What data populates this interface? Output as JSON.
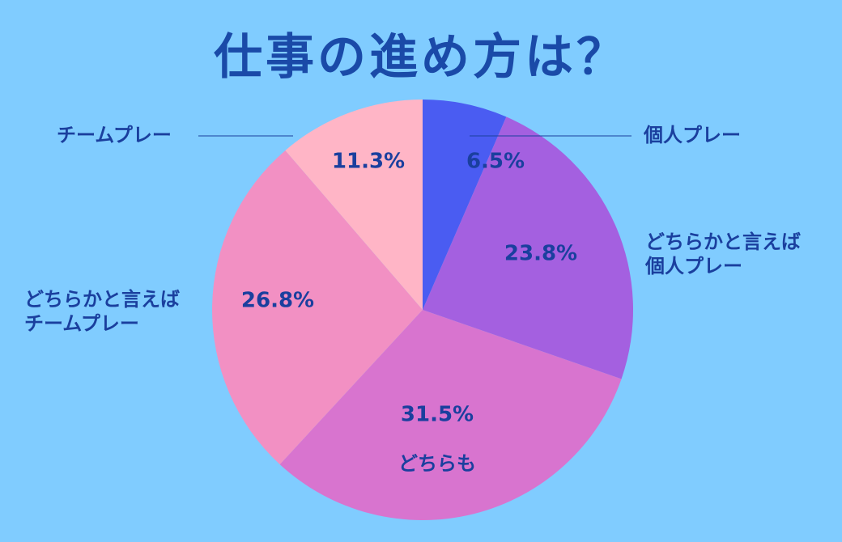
{
  "chart_data": {
    "type": "pie",
    "title": "仕事の進め方は？",
    "categories": [
      "個人プレー",
      "どちらかと言えば\n個人プレー",
      "どちらも",
      "どちらかと言えば\nチームプレー",
      "チームプレー"
    ],
    "values": [
      6.5,
      23.8,
      31.5,
      26.8,
      11.3
    ],
    "value_labels": [
      "6.5%",
      "23.8%",
      "31.5%",
      "26.8%",
      "11.3%"
    ],
    "colors": [
      "#4a5cf2",
      "#a460e0",
      "#d874cf",
      "#f290c3",
      "#ffb5c6"
    ]
  }
}
